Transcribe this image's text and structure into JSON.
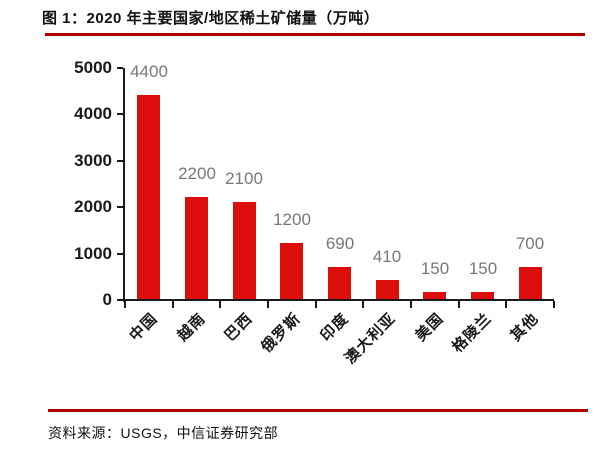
{
  "window": {
    "title": "图 1：2020 年主要国家/地区稀土矿储量（万吨）",
    "source_note": "资料来源：USGS，中信证券研究部"
  },
  "colors": {
    "bar": "#DC0D0A",
    "rule": "#B00000",
    "axis": "#1A1A1A",
    "value_label": "#75787E"
  },
  "chart_data": {
    "type": "bar",
    "title": "2020 年主要国家/地区稀土矿储量（万吨）",
    "categories": [
      "中国",
      "越南",
      "巴西",
      "俄罗斯",
      "印度",
      "澳大利亚",
      "美国",
      "格陵兰",
      "其他"
    ],
    "values": [
      4400,
      2200,
      2100,
      1200,
      690,
      410,
      150,
      150,
      700
    ],
    "value_labels": [
      "4400",
      "2200",
      "2100",
      "1200",
      "690",
      "410",
      "150",
      "150",
      "700"
    ],
    "xlabel": "",
    "ylabel": "",
    "ylim": [
      0,
      5000
    ],
    "yticks": [
      0,
      1000,
      2000,
      3000,
      4000,
      5000
    ],
    "grid": false,
    "legend": "none",
    "bar_color": "#DC0D0A",
    "source": "USGS，中信证券研究部"
  }
}
